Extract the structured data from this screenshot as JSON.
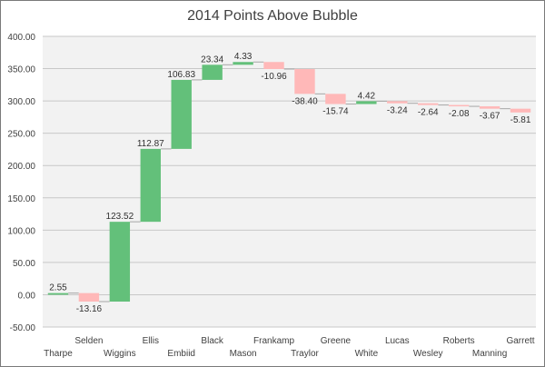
{
  "chart_data": {
    "type": "waterfall",
    "title": "2014 Points Above Bubble",
    "ylim": [
      -50,
      400
    ],
    "yticks": [
      "400.00",
      "350.00",
      "300.00",
      "250.00",
      "200.00",
      "150.00",
      "100.00",
      "50.00",
      "0.00",
      "-50.00"
    ],
    "categories": [
      "Tharpe",
      "Selden",
      "Wiggins",
      "Ellis",
      "Embiid",
      "Black",
      "Mason",
      "Frankamp",
      "Traylor",
      "Greene",
      "White",
      "Lucas",
      "Wesley",
      "Roberts",
      "Manning",
      "Garrett"
    ],
    "values": [
      2.55,
      -13.16,
      123.52,
      112.87,
      106.83,
      23.34,
      4.33,
      -10.96,
      -38.4,
      -15.74,
      4.42,
      -3.24,
      -2.64,
      -2.08,
      -3.67,
      -5.81
    ],
    "value_labels": [
      "2.55",
      "-13.16",
      "123.52",
      "112.87",
      "106.83",
      "23.34",
      "4.33",
      "-10.96",
      "-38.40",
      "-15.74",
      "4.42",
      "-3.24",
      "-2.64",
      "-2.08",
      "-3.67",
      "-5.81"
    ],
    "colors": {
      "increase": "#63c07a",
      "decrease": "#ffb8b8",
      "plot_bg": "#f2f2f2",
      "grid": "#c8c8c8"
    },
    "grid": true,
    "legend": "none"
  }
}
